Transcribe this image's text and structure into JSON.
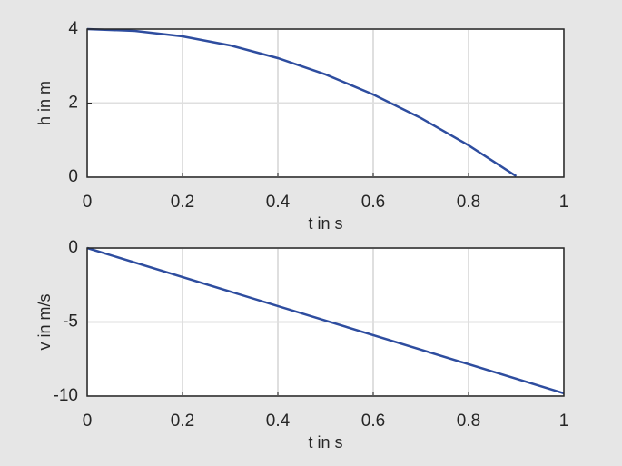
{
  "chart_data": [
    {
      "type": "line",
      "xlabel": "t in s",
      "ylabel": "h in m",
      "x": [
        0,
        0.1,
        0.2,
        0.3,
        0.4,
        0.5,
        0.6,
        0.7,
        0.8,
        0.9
      ],
      "values": [
        4,
        3.951,
        3.804,
        3.559,
        3.215,
        2.774,
        2.234,
        1.597,
        0.861,
        0.027
      ],
      "color": "#2e4d9f",
      "xlim": [
        0,
        1
      ],
      "xticks": [
        0,
        0.2,
        0.4,
        0.6,
        0.8,
        1
      ],
      "ylim": [
        0,
        4
      ],
      "yticks": [
        0,
        2,
        4
      ],
      "grid": true
    },
    {
      "type": "line",
      "xlabel": "t in s",
      "ylabel": "v in m/s",
      "x": [
        0,
        0.5,
        1
      ],
      "values": [
        0,
        -4.905,
        -9.81
      ],
      "color": "#2e4d9f",
      "xlim": [
        0,
        1
      ],
      "xticks": [
        0,
        0.2,
        0.4,
        0.6,
        0.8,
        1
      ],
      "ylim": [
        -10,
        0
      ],
      "yticks": [
        -10,
        -5,
        0
      ],
      "grid": true
    }
  ]
}
